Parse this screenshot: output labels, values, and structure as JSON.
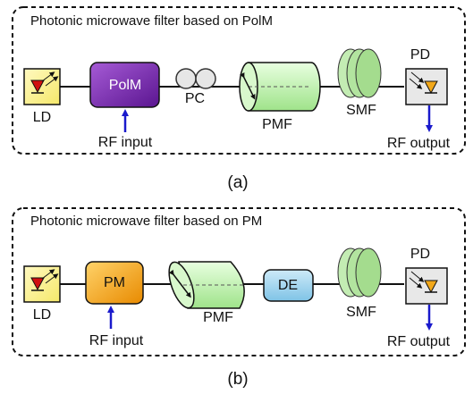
{
  "panels": [
    {
      "title": "Photonic microwave filter based on PolM",
      "caption": "(a)",
      "labels": {
        "ld": "LD",
        "modulator": "PolM",
        "pc": "PC",
        "pmf": "PMF",
        "smf": "SMF",
        "pd": "PD",
        "rf_input": "RF input",
        "rf_output": "RF output"
      }
    },
    {
      "title": "Photonic microwave filter based on PM",
      "caption": "(b)",
      "labels": {
        "ld": "LD",
        "modulator": "PM",
        "pmf": "PMF",
        "de": "DE",
        "smf": "SMF",
        "pd": "PD",
        "rf_input": "RF input",
        "rf_output": "RF output"
      }
    }
  ]
}
